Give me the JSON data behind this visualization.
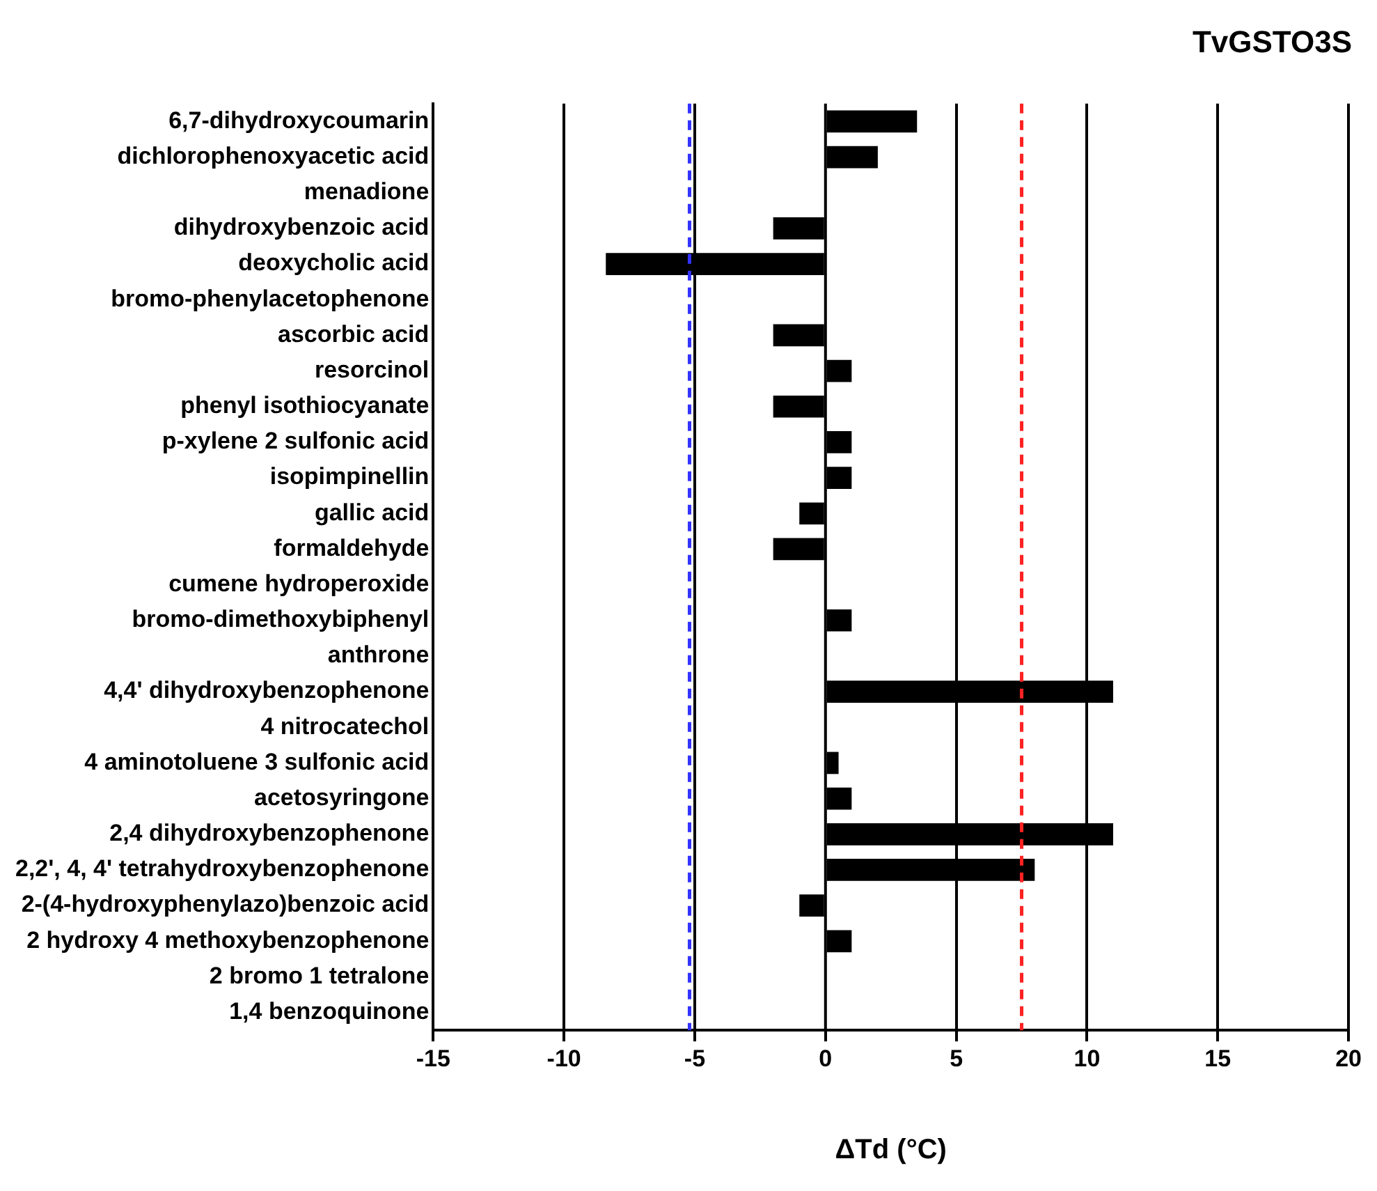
{
  "chart_data": {
    "type": "bar",
    "orientation": "horizontal",
    "title": "TvGSTO3S",
    "xlabel": "ΔTd (°C)",
    "categories": [
      "6,7-dihydroxycoumarin",
      "dichlorophenoxyacetic acid",
      "menadione",
      "dihydroxybenzoic acid",
      "deoxycholic acid",
      "bromo-phenylacetophenone",
      "ascorbic acid",
      "resorcinol",
      "phenyl isothiocyanate",
      "p-xylene 2 sulfonic acid",
      "isopimpinellin",
      "gallic acid",
      "formaldehyde",
      "cumene hydroperoxide",
      "bromo-dimethoxybiphenyl",
      "anthrone",
      "4,4' dihydroxybenzophenone",
      "4 nitrocatechol",
      "4 aminotoluene 3 sulfonic acid",
      "acetosyringone",
      "2,4 dihydroxybenzophenone",
      "2,2', 4, 4' tetrahydroxybenzophenone",
      "2-(4-hydroxyphenylazo)benzoic acid",
      "2 hydroxy 4 methoxybenzophenone",
      "2 bromo 1 tetralone",
      "1,4 benzoquinone"
    ],
    "values": [
      3.5,
      2,
      0,
      -2,
      -8.4,
      0,
      -2,
      1,
      -2,
      1,
      1,
      -1,
      -2,
      0,
      1,
      0,
      11,
      0,
      0.5,
      1,
      11,
      8,
      -1,
      1,
      0,
      0
    ],
    "color": "#000000",
    "xlim": [
      -15,
      20
    ],
    "xticks": [
      -15,
      -10,
      -5,
      0,
      5,
      10,
      15,
      20
    ],
    "grid": "x",
    "legend": false,
    "ref_lines": [
      {
        "axis": "x",
        "value": -5.2,
        "color": "#3333ff",
        "line_style": "dashed"
      },
      {
        "axis": "x",
        "value": 7.5,
        "color": "#ff2222",
        "line_style": "dashed"
      }
    ]
  }
}
